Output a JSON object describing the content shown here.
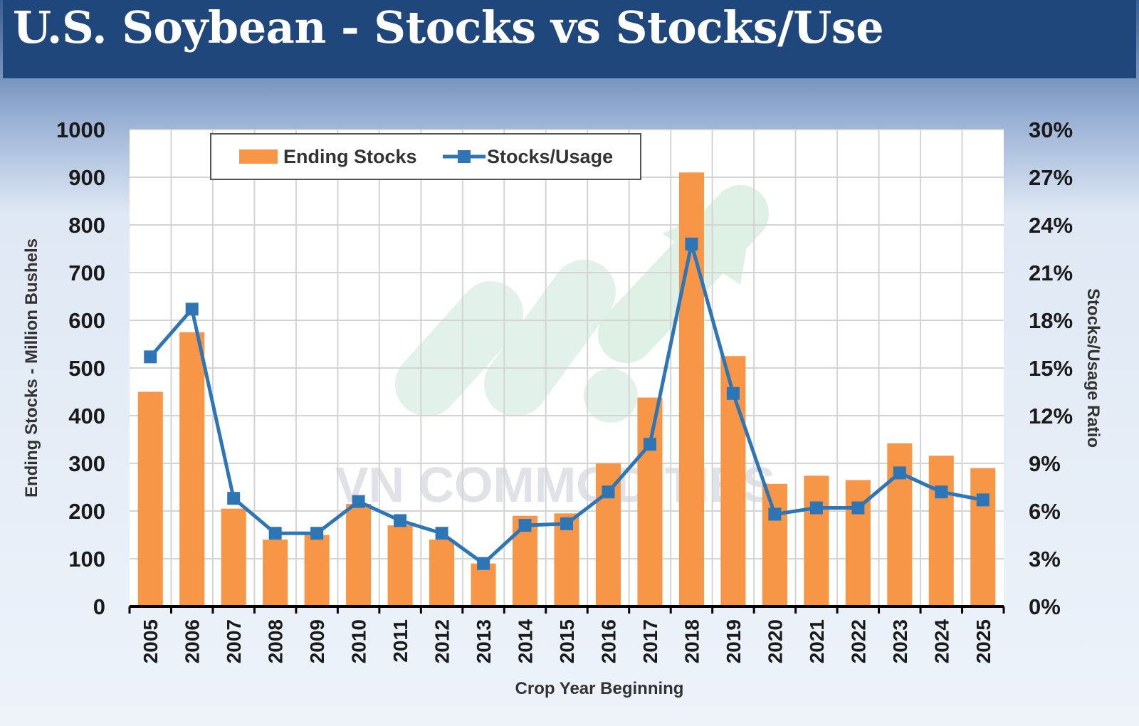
{
  "header": {
    "title": "U.S. Soybean - Stocks vs Stocks/Use"
  },
  "watermark": {
    "text": "VN COMMODITIES"
  },
  "colors": {
    "bar": "#f79646",
    "line": "#2e75b6",
    "header_bg": "#1f477c"
  },
  "chart_data": {
    "type": "bar+line",
    "title": "U.S. Soybean - Stocks vs Stocks/Use",
    "xlabel": "Crop Year Beginning",
    "ylabel_left": "Ending Stocks - Million Bushels",
    "ylabel_right": "Stocks/Usage Ratio",
    "categories": [
      "2005",
      "2006",
      "2007",
      "2008",
      "2009",
      "2010",
      "2011",
      "2012",
      "2013",
      "2014",
      "2015",
      "2016",
      "2017",
      "2018",
      "2019",
      "2020",
      "2021",
      "2022",
      "2023",
      "2024",
      "2025"
    ],
    "left_axis": {
      "min": 0,
      "max": 1000,
      "step": 100,
      "ticks": [
        "0",
        "100",
        "200",
        "300",
        "400",
        "500",
        "600",
        "700",
        "800",
        "900",
        "1000"
      ]
    },
    "right_axis": {
      "min": 0,
      "max": 30,
      "step": 3,
      "ticks": [
        "0%",
        "3%",
        "6%",
        "9%",
        "12%",
        "15%",
        "18%",
        "21%",
        "24%",
        "27%",
        "30%"
      ]
    },
    "legend_position": "top-left",
    "grid": true,
    "series": [
      {
        "name": "Ending Stocks",
        "type": "bar",
        "axis": "left",
        "values": [
          450,
          575,
          205,
          140,
          150,
          215,
          170,
          140,
          90,
          190,
          195,
          300,
          438,
          910,
          525,
          257,
          274,
          265,
          342,
          316,
          290
        ]
      },
      {
        "name": "Stocks/Usage",
        "type": "line",
        "axis": "right",
        "values": [
          15.7,
          18.7,
          6.8,
          4.6,
          4.6,
          6.6,
          5.4,
          4.6,
          2.7,
          5.1,
          5.2,
          7.2,
          10.2,
          22.8,
          13.4,
          5.8,
          6.2,
          6.2,
          8.4,
          7.2,
          6.7
        ]
      }
    ]
  }
}
